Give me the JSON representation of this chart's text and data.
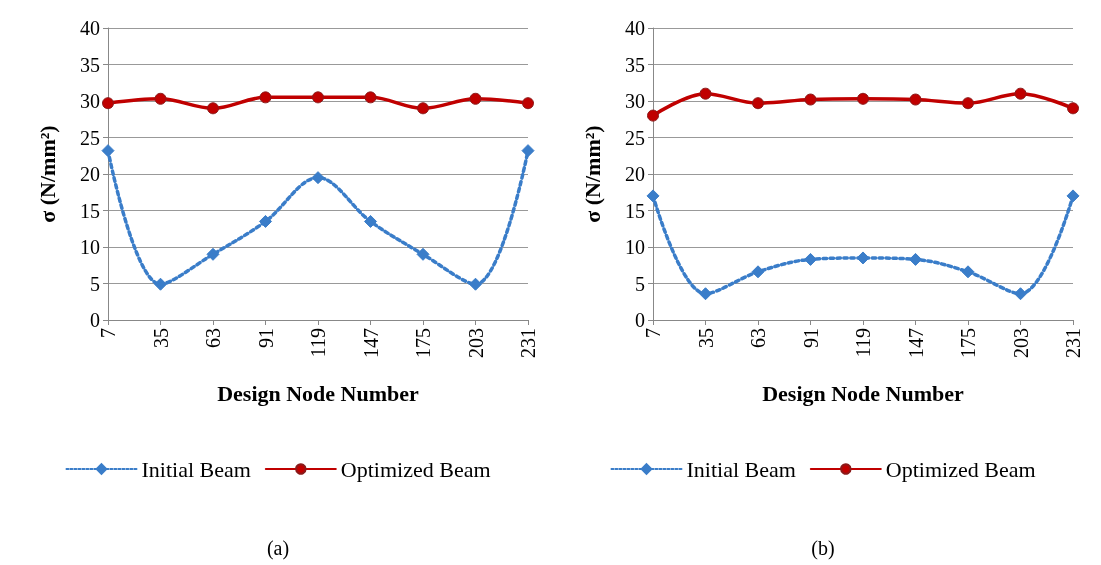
{
  "chart_data": [
    {
      "type": "line",
      "ylabel": "σ (N/mm²)",
      "xlabel": "Design Node Number",
      "categories": [
        "7",
        "35",
        "63",
        "91",
        "119",
        "147",
        "175",
        "203",
        "231"
      ],
      "ylim": [
        0,
        40
      ],
      "yticks": [
        0,
        5,
        10,
        15,
        20,
        25,
        30,
        35,
        40
      ],
      "grid": "y",
      "legend": "bottom",
      "annotations": [
        "(a)"
      ],
      "series": [
        {
          "name": "Initial Beam",
          "color": "#3a7dc9",
          "line_style": "dotted",
          "marker": "diamond",
          "values": [
            23.2,
            4.9,
            9.0,
            13.5,
            19.5,
            13.5,
            9.0,
            4.9,
            23.2
          ]
        },
        {
          "name": "Optimized Beam",
          "color": "#c00000",
          "line_style": "solid",
          "marker": "circle",
          "values": [
            29.7,
            30.3,
            29.0,
            30.5,
            30.5,
            30.5,
            29.0,
            30.3,
            29.7
          ]
        }
      ]
    },
    {
      "type": "line",
      "ylabel": "σ (N/mm²)",
      "xlabel": "Design Node Number",
      "categories": [
        "7",
        "35",
        "63",
        "91",
        "119",
        "147",
        "175",
        "203",
        "231"
      ],
      "ylim": [
        0,
        40
      ],
      "yticks": [
        0,
        5,
        10,
        15,
        20,
        25,
        30,
        35,
        40
      ],
      "grid": "y",
      "legend": "bottom",
      "annotations": [
        "(b)"
      ],
      "series": [
        {
          "name": "Initial Beam",
          "color": "#3a7dc9",
          "line_style": "dotted",
          "marker": "diamond",
          "values": [
            17.0,
            3.6,
            6.6,
            8.3,
            8.5,
            8.3,
            6.6,
            3.6,
            17.0
          ]
        },
        {
          "name": "Optimized Beam",
          "color": "#c00000",
          "line_style": "solid",
          "marker": "circle",
          "values": [
            28.0,
            31.0,
            29.7,
            30.2,
            30.3,
            30.2,
            29.7,
            31.0,
            29.0
          ]
        }
      ]
    }
  ]
}
